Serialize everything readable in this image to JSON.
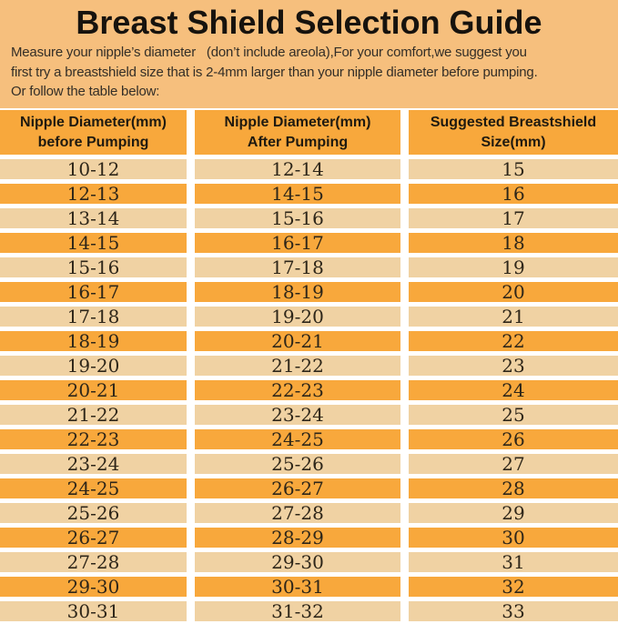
{
  "page": {
    "title": "Breast Shield Selection Guide",
    "intro_lines": [
      "Measure your nipple’s diameter   (don’t include areola),For your comfort,we suggest you",
      "first try a breastshield size that is 2-4mm larger than your nipple diameter before pumping.",
      "Or follow the table below:"
    ]
  },
  "colors": {
    "background": "#F6BF7D",
    "header_row": "#F8A83C",
    "stripe_dark": "#F8A83C",
    "stripe_light": "#F0D2A3",
    "separator": "#FFFFFF",
    "title_text": "#17130E",
    "body_text": "#2E2619"
  },
  "table": {
    "headers": [
      {
        "line1": "Nipple Diameter(mm)",
        "line2": "before Pumping"
      },
      {
        "line1": "Nipple Diameter(mm)",
        "line2": "After Pumping"
      },
      {
        "line1": "Suggested Breastshield",
        "line2": "Size(mm)"
      }
    ],
    "rows": [
      [
        "10-12",
        "12-14",
        "15"
      ],
      [
        "12-13",
        "14-15",
        "16"
      ],
      [
        "13-14",
        "15-16",
        "17"
      ],
      [
        "14-15",
        "16-17",
        "18"
      ],
      [
        "15-16",
        "17-18",
        "19"
      ],
      [
        "16-17",
        "18-19",
        "20"
      ],
      [
        "17-18",
        "19-20",
        "21"
      ],
      [
        "18-19",
        "20-21",
        "22"
      ],
      [
        "19-20",
        "21-22",
        "23"
      ],
      [
        "20-21",
        "22-23",
        "24"
      ],
      [
        "21-22",
        "23-24",
        "25"
      ],
      [
        "22-23",
        "24-25",
        "26"
      ],
      [
        "23-24",
        "25-26",
        "27"
      ],
      [
        "24-25",
        "26-27",
        "28"
      ],
      [
        "25-26",
        "27-28",
        "29"
      ],
      [
        "26-27",
        "28-29",
        "30"
      ],
      [
        "27-28",
        "29-30",
        "31"
      ],
      [
        "29-30",
        "30-31",
        "32"
      ],
      [
        "30-31",
        "31-32",
        "33"
      ]
    ]
  },
  "chart_data": {
    "type": "table",
    "title": "Breast Shield Selection Guide",
    "columns": [
      "Nipple Diameter(mm) before Pumping",
      "Nipple Diameter(mm) After Pumping",
      "Suggested Breastshield Size(mm)"
    ],
    "rows": [
      [
        "10-12",
        "12-14",
        "15"
      ],
      [
        "12-13",
        "14-15",
        "16"
      ],
      [
        "13-14",
        "15-16",
        "17"
      ],
      [
        "14-15",
        "16-17",
        "18"
      ],
      [
        "15-16",
        "17-18",
        "19"
      ],
      [
        "16-17",
        "18-19",
        "20"
      ],
      [
        "17-18",
        "19-20",
        "21"
      ],
      [
        "18-19",
        "20-21",
        "22"
      ],
      [
        "19-20",
        "21-22",
        "23"
      ],
      [
        "20-21",
        "22-23",
        "24"
      ],
      [
        "21-22",
        "23-24",
        "25"
      ],
      [
        "22-23",
        "24-25",
        "26"
      ],
      [
        "23-24",
        "25-26",
        "27"
      ],
      [
        "24-25",
        "26-27",
        "28"
      ],
      [
        "25-26",
        "27-28",
        "29"
      ],
      [
        "26-27",
        "28-29",
        "30"
      ],
      [
        "27-28",
        "29-30",
        "31"
      ],
      [
        "29-30",
        "30-31",
        "32"
      ],
      [
        "30-31",
        "31-32",
        "33"
      ]
    ]
  }
}
